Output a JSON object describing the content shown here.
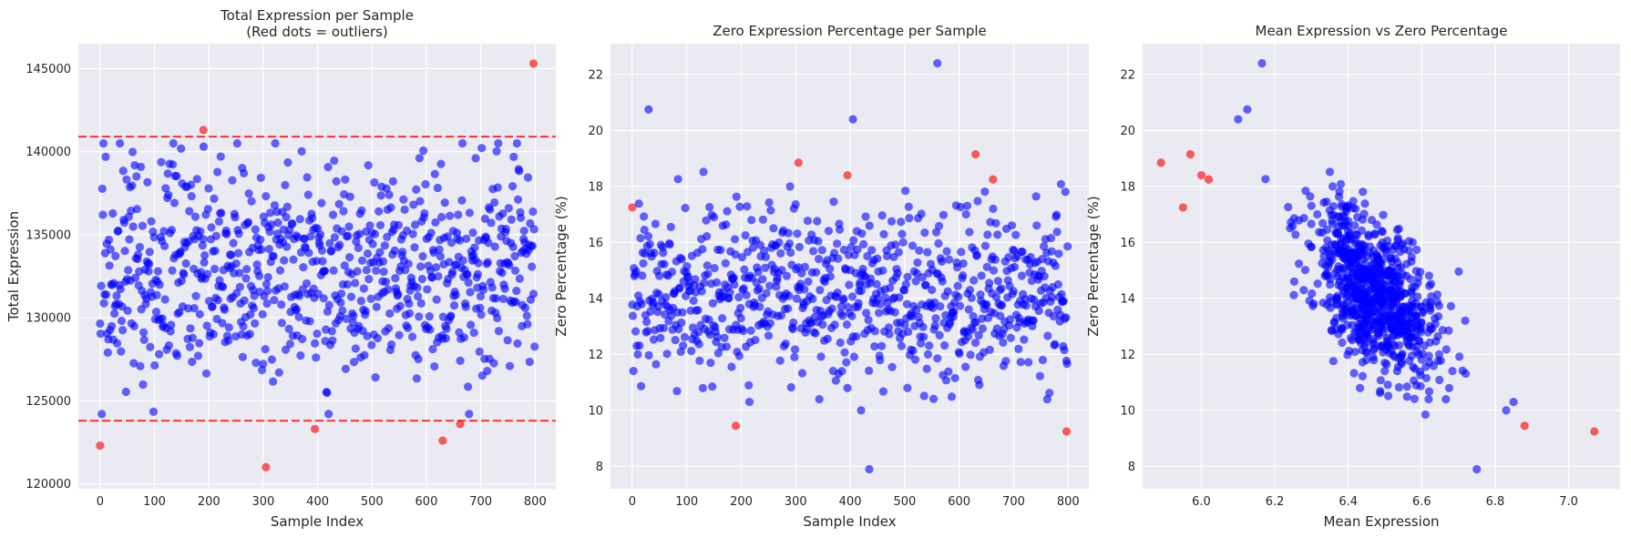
{
  "chart_data": [
    {
      "type": "scatter",
      "title": "Total Expression per Sample\n(Red dots = outliers)",
      "xlabel": "Sample Index",
      "ylabel": "Total Expression",
      "xlim": [
        -40,
        838
      ],
      "ylim": [
        119700,
        146500
      ],
      "xticks": [
        0,
        100,
        200,
        300,
        400,
        500,
        600,
        700,
        800
      ],
      "yticks": [
        120000,
        125000,
        130000,
        135000,
        140000,
        145000
      ],
      "hlines": [
        140900,
        123800
      ],
      "grid": true,
      "colors": {
        "normal": "#0000ff",
        "outlier": "#ff0000",
        "hline": "#ff0000"
      },
      "series": [
        {
          "name": "outliers",
          "points": [
            [
              0,
              122300
            ],
            [
              190,
              141300
            ],
            [
              305,
              121000
            ],
            [
              395,
              123300
            ],
            [
              630,
              122600
            ],
            [
              662,
              123600
            ],
            [
              797,
              145300
            ]
          ]
        }
      ]
    },
    {
      "type": "scatter",
      "title": "Zero Expression Percentage per Sample",
      "xlabel": "Sample Index",
      "ylabel": "Zero Percentage (%)",
      "xlim": [
        -40,
        838
      ],
      "ylim": [
        7.2,
        23.1
      ],
      "xticks": [
        0,
        100,
        200,
        300,
        400,
        500,
        600,
        700,
        800
      ],
      "yticks": [
        8,
        10,
        12,
        14,
        16,
        18,
        20,
        22
      ],
      "grid": true,
      "colors": {
        "normal": "#0000ff",
        "outlier": "#ff0000"
      },
      "series": [
        {
          "name": "highlights",
          "points": [
            [
              30,
              20.75
            ],
            [
              405,
              20.4
            ],
            [
              560,
              22.4
            ],
            [
              435,
              7.9
            ],
            [
              215,
              10.3
            ],
            [
              420,
              10.0
            ],
            [
              505,
              10.8
            ]
          ]
        },
        {
          "name": "outliers",
          "points": [
            [
              0,
              17.25
            ],
            [
              190,
              9.45
            ],
            [
              305,
              18.85
            ],
            [
              395,
              18.4
            ],
            [
              630,
              19.15
            ],
            [
              662,
              18.25
            ],
            [
              797,
              9.25
            ]
          ]
        }
      ]
    },
    {
      "type": "scatter",
      "title": "Mean Expression vs Zero Percentage",
      "xlabel": "Mean Expression",
      "ylabel": "Zero Percentage (%)",
      "xlim": [
        5.84,
        7.14
      ],
      "ylim": [
        7.2,
        23.1
      ],
      "xticks": [
        6.0,
        6.2,
        6.4,
        6.6,
        6.8,
        7.0
      ],
      "yticks": [
        8,
        10,
        12,
        14,
        16,
        18,
        20,
        22
      ],
      "grid": true,
      "colors": {
        "normal": "#0000ff",
        "outlier": "#ff0000"
      },
      "series": [
        {
          "name": "highlights",
          "points": [
            [
              6.165,
              22.4
            ],
            [
              6.125,
              20.75
            ],
            [
              6.1,
              20.4
            ],
            [
              6.75,
              7.9
            ],
            [
              6.61,
              9.85
            ],
            [
              6.83,
              10.0
            ],
            [
              6.85,
              10.3
            ]
          ]
        },
        {
          "name": "outliers",
          "points": [
            [
              5.89,
              18.85
            ],
            [
              5.95,
              17.25
            ],
            [
              5.97,
              19.15
            ],
            [
              6.0,
              18.4
            ],
            [
              6.02,
              18.25
            ],
            [
              6.88,
              9.45
            ],
            [
              7.07,
              9.25
            ]
          ]
        }
      ]
    }
  ]
}
